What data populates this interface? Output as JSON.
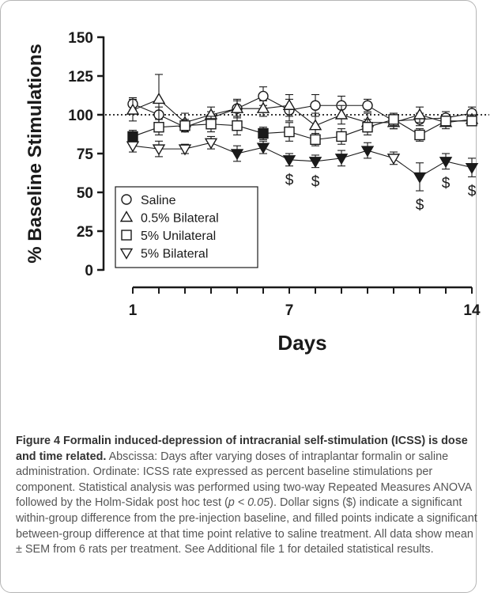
{
  "chart_data": {
    "type": "scatter",
    "ylabel": "% Baseline Stimulations",
    "xlabel": "Days",
    "ylim": [
      0,
      150
    ],
    "xlim": [
      1,
      14
    ],
    "yticks": [
      "0",
      "25",
      "50",
      "75",
      "100",
      "125",
      "150"
    ],
    "xticks": [
      "1",
      "7",
      "14"
    ],
    "reference_line": 100,
    "x": [
      1,
      2,
      3,
      4,
      5,
      6,
      7,
      8,
      9,
      10,
      11,
      12,
      13,
      14
    ],
    "series": [
      {
        "name": "Saline",
        "marker": "circle-open",
        "values": [
          107,
          100,
          92,
          98,
          104,
          112,
          103,
          106,
          106,
          106,
          96,
          97,
          98,
          101
        ],
        "err": [
          4,
          5,
          3,
          4,
          6,
          6,
          7,
          7,
          6,
          4,
          5,
          4,
          4,
          4
        ],
        "filled": [
          false,
          false,
          false,
          false,
          false,
          false,
          false,
          false,
          false,
          false,
          false,
          false,
          false,
          false
        ]
      },
      {
        "name": "0.5% Bilateral",
        "marker": "triangle-up-open",
        "values": [
          103,
          110,
          95,
          100,
          104,
          104,
          106,
          93,
          100,
          95,
          95,
          100,
          95,
          97
        ],
        "err": [
          7,
          16,
          6,
          5,
          5,
          5,
          7,
          8,
          6,
          6,
          4,
          5,
          4,
          3
        ],
        "filled": [
          false,
          false,
          false,
          false,
          false,
          false,
          false,
          false,
          false,
          false,
          false,
          false,
          false,
          false
        ]
      },
      {
        "name": "5% Unilateral",
        "marker": "square-open",
        "values": [
          86,
          92,
          93,
          94,
          93,
          88,
          89,
          84,
          86,
          92,
          97,
          87,
          96,
          96
        ],
        "err": [
          4,
          5,
          4,
          5,
          6,
          4,
          6,
          4,
          5,
          5,
          4,
          4,
          3,
          3
        ],
        "filled": [
          true,
          false,
          false,
          false,
          false,
          true,
          false,
          false,
          false,
          false,
          false,
          false,
          false,
          false
        ]
      },
      {
        "name": "5% Bilateral",
        "marker": "triangle-down-open",
        "values": [
          80,
          78,
          78,
          82,
          75,
          79,
          71,
          70,
          72,
          77,
          72,
          60,
          70,
          66
        ],
        "err": [
          4,
          5,
          3,
          4,
          5,
          4,
          4,
          4,
          5,
          5,
          4,
          9,
          5,
          6
        ],
        "filled": [
          false,
          false,
          false,
          false,
          true,
          true,
          true,
          true,
          true,
          true,
          false,
          true,
          true,
          true
        ]
      }
    ],
    "significance": [
      {
        "day": 7,
        "symbol": "$"
      },
      {
        "day": 8,
        "symbol": "$"
      },
      {
        "day": 12,
        "symbol": "$"
      },
      {
        "day": 13,
        "symbol": "$"
      },
      {
        "day": 14,
        "symbol": "$"
      }
    ],
    "legend_position": "bottom-left"
  },
  "caption": {
    "bold": "Figure 4 Formalin induced-depression of intracranial self-stimulation (ICSS) is dose and time related.",
    "part1": " Abscissa: Days after varying doses of intraplantar formalin or saline administration. Ordinate: ICSS rate expressed as percent baseline stimulations per component. Statistical analysis was performed using two-way Repeated Measures ANOVA followed by the Holm-Sidak post hoc test (",
    "italic": "p < 0.05",
    "part2": "). Dollar signs ($) indicate a significant within-group difference from the pre-injection baseline, and filled points indicate a significant between-group difference at that time point relative to saline treatment. All data show mean ± SEM from 6 rats per treatment. See Additional file 1 for detailed statistical results."
  },
  "colors": {
    "ink": "#1a1a1a",
    "caption": "#555555"
  }
}
